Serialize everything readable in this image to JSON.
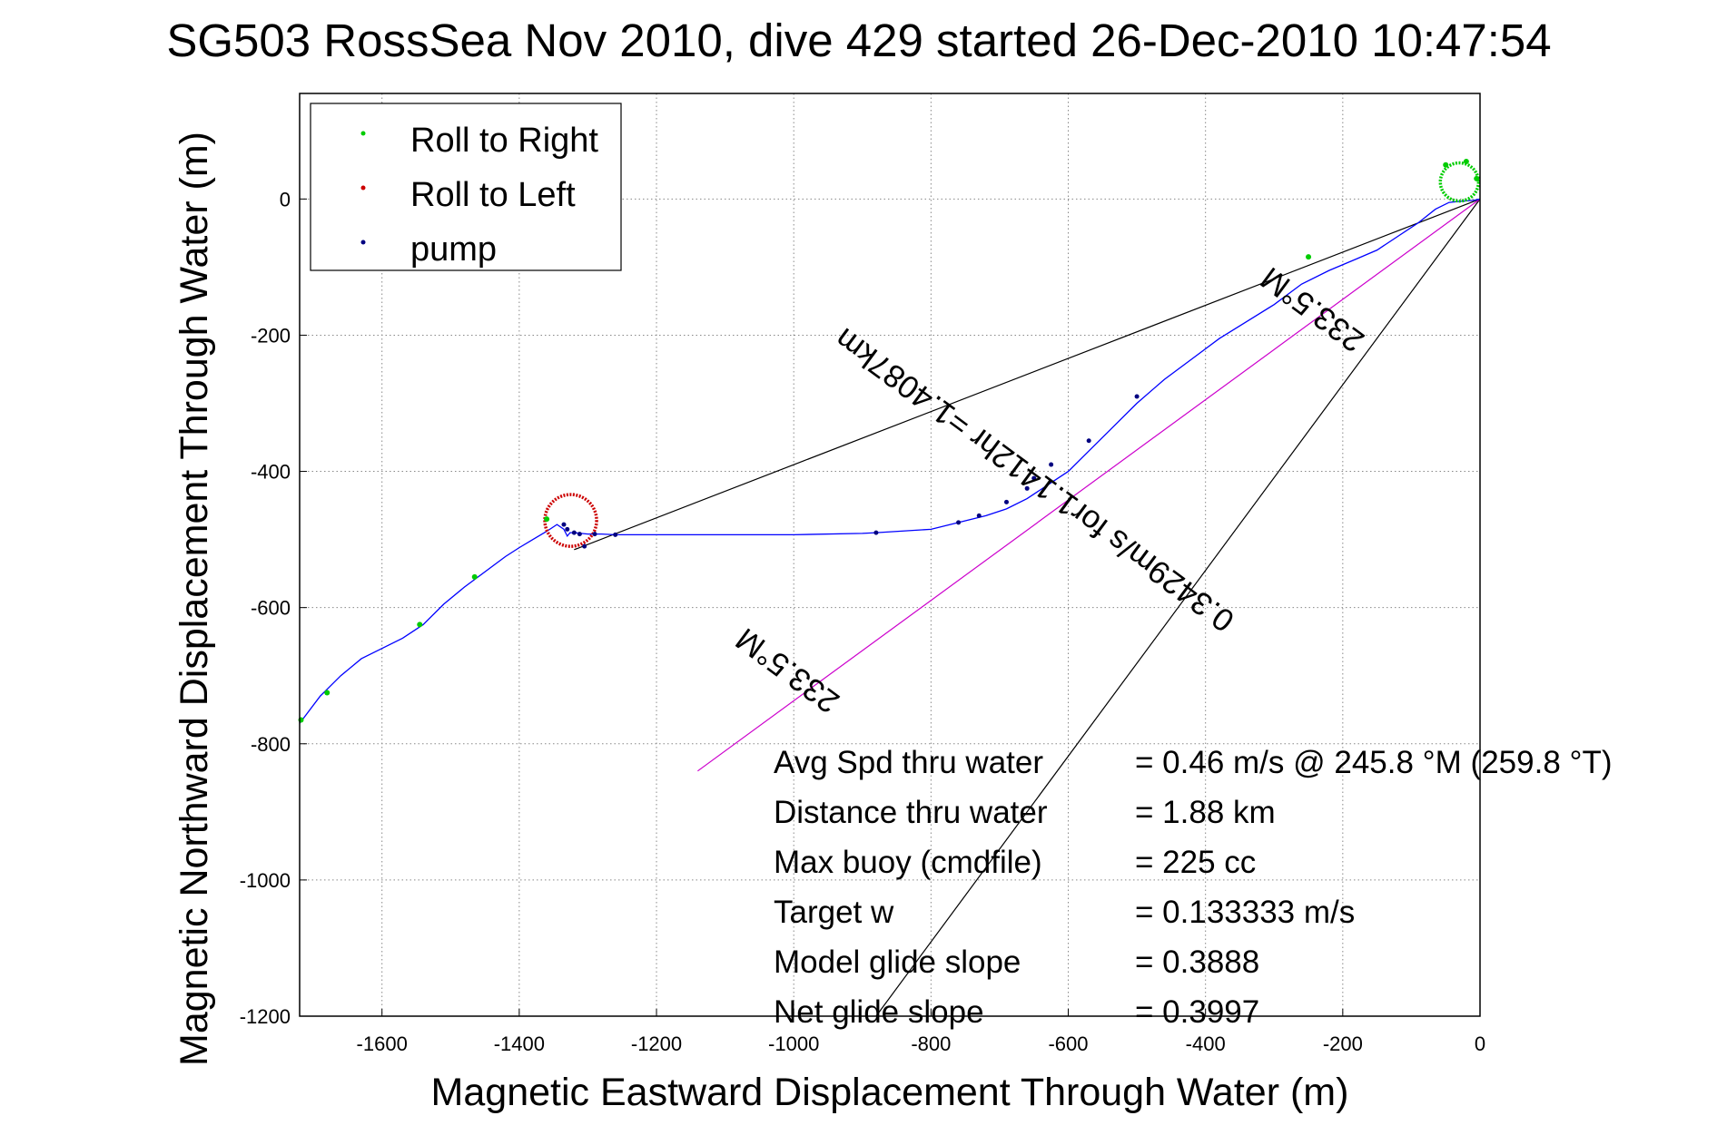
{
  "chart_data": {
    "type": "line",
    "title": "SG503 RossSea Nov 2010, dive 429 started 26-Dec-2010 10:47:54",
    "xlabel": "Magnetic Eastward Displacement Through Water (m)",
    "ylabel": "Magnetic Northward Displacement Through Water (m)",
    "xlim": [
      -1720,
      0
    ],
    "ylim": [
      -1200,
      155
    ],
    "grid": true,
    "xticks": [
      -1600,
      -1400,
      -1200,
      -1000,
      -800,
      -600,
      -400,
      -200,
      0
    ],
    "yticks": [
      0,
      -200,
      -400,
      -600,
      -800,
      -1000,
      -1200
    ],
    "legend_position": "top-left",
    "legend": [
      {
        "label": "Roll to Right",
        "color": "#00cc00"
      },
      {
        "label": "Roll to Left",
        "color": "#cc0000"
      },
      {
        "label": "pump",
        "color": "#000080"
      }
    ],
    "track": {
      "color": "#0000ff",
      "x": [
        -1720,
        -1690,
        -1660,
        -1630,
        -1600,
        -1570,
        -1540,
        -1510,
        -1480,
        -1460,
        -1440,
        -1420,
        -1400,
        -1380,
        -1360,
        -1345,
        -1335,
        -1330,
        -1326,
        -1320,
        -1300,
        -1280,
        -1260,
        -1200,
        -1100,
        -1000,
        -900,
        -880,
        -800,
        -760,
        -720,
        -690,
        -660,
        -630,
        -600,
        -570,
        -540,
        -500,
        -460,
        -420,
        -380,
        -340,
        -300,
        -260,
        -220,
        -180,
        -150,
        -120,
        -90,
        -65,
        -45,
        -25,
        -10,
        0
      ],
      "y": [
        -770,
        -730,
        -700,
        -675,
        -660,
        -645,
        -625,
        -595,
        -570,
        -555,
        -540,
        -525,
        -512,
        -500,
        -488,
        -478,
        -485,
        -495,
        -490,
        -490,
        -492,
        -492,
        -493,
        -493,
        -493,
        -493,
        -491,
        -490,
        -485,
        -475,
        -465,
        -455,
        -440,
        -420,
        -400,
        -370,
        -340,
        -300,
        -265,
        -235,
        -205,
        -180,
        -155,
        -125,
        -105,
        -88,
        -75,
        -55,
        -35,
        -15,
        -5,
        -3,
        -2,
        0
      ]
    },
    "roll_left_loop": {
      "center": [
        -1325,
        -472
      ],
      "radius": 38
    },
    "roll_right_loop": {
      "center": [
        -30,
        25
      ],
      "radius": 28
    },
    "roll_right_points": {
      "x": [
        -1718,
        -1680,
        -1545,
        -1465,
        -1360,
        -250,
        -50,
        -20,
        -5
      ],
      "y": [
        -765,
        -725,
        -625,
        -555,
        -470,
        -85,
        50,
        55,
        30
      ]
    },
    "pump_points": {
      "x": [
        -1335,
        -1330,
        -1320,
        -1312,
        -1305,
        -1290,
        -1260,
        -880,
        -760,
        -730,
        -690,
        -660,
        -650,
        -625,
        -570,
        -500
      ],
      "y": [
        -478,
        -485,
        -490,
        -492,
        -510,
        -492,
        -493,
        -490,
        -475,
        -465,
        -445,
        -425,
        -410,
        -390,
        -355,
        -290
      ]
    },
    "triangle_lines": {
      "color": "#000000",
      "segments": [
        {
          "x": [
            0,
            -1320
          ],
          "y": [
            0,
            -515
          ]
        },
        {
          "x": [
            0,
            -880
          ],
          "y": [
            0,
            -1200
          ]
        }
      ]
    },
    "heading_line": {
      "color": "#cc00cc",
      "x": [
        0,
        -1140
      ],
      "y": [
        0,
        -840
      ]
    },
    "annotations": [
      {
        "text": "233.5°M",
        "x": -235,
        "y": -150,
        "rotation": 233.5
      },
      {
        "text": "0.3429m/s for1.1412hr =1.4087km",
        "x": -640,
        "y": -400,
        "rotation": 233.5
      },
      {
        "text": "233.5°M",
        "x": -1000,
        "y": -680,
        "rotation": 233.5
      }
    ],
    "stats": [
      {
        "label": "Avg Spd thru water",
        "value": "=  0.46 m/s @ 245.8 °M (259.8 °T)"
      },
      {
        "label": "Distance thru water",
        "value": "=  1.88 km"
      },
      {
        "label": "Max buoy (cmdfile)",
        "value": "= 225 cc"
      },
      {
        "label": "Target w",
        "value": "= 0.133333 m/s"
      },
      {
        "label": "Model glide slope",
        "value": "= 0.3888"
      },
      {
        "label": "Net glide slope",
        "value": "= 0.3997"
      }
    ]
  }
}
